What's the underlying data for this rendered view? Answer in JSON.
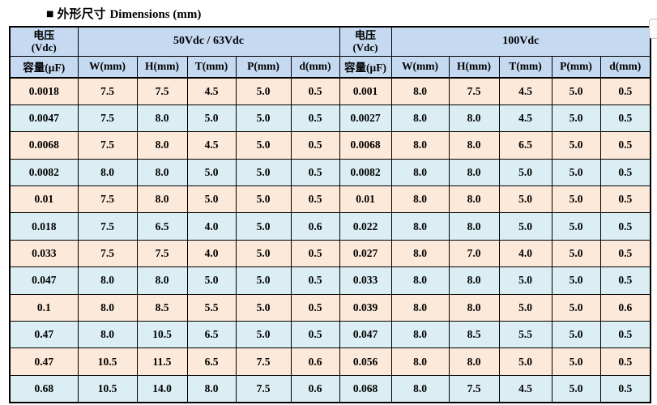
{
  "title": {
    "bullet": "■",
    "cn": "外形尺寸",
    "en": "Dimensions (mm)"
  },
  "table": {
    "left": {
      "voltage_label_line1": "电压",
      "voltage_label_line2": "(Vdc)",
      "voltage_value": "50Vdc / 63Vdc",
      "capacity_header": "容量(μF)",
      "columns": [
        "W(mm)",
        "H(mm)",
        "T(mm)",
        "P(mm)",
        "d(mm)"
      ],
      "rows": [
        [
          "0.0018",
          "7.5",
          "7.5",
          "4.5",
          "5.0",
          "0.5"
        ],
        [
          "0.0047",
          "7.5",
          "8.0",
          "5.0",
          "5.0",
          "0.5"
        ],
        [
          "0.0068",
          "7.5",
          "8.0",
          "4.5",
          "5.0",
          "0.5"
        ],
        [
          "0.0082",
          "8.0",
          "8.0",
          "5.0",
          "5.0",
          "0.5"
        ],
        [
          "0.01",
          "7.5",
          "8.0",
          "5.0",
          "5.0",
          "0.5"
        ],
        [
          "0.018",
          "7.5",
          "6.5",
          "4.0",
          "5.0",
          "0.6"
        ],
        [
          "0.033",
          "7.5",
          "7.5",
          "4.0",
          "5.0",
          "0.5"
        ],
        [
          "0.047",
          "8.0",
          "8.0",
          "5.0",
          "5.0",
          "0.5"
        ],
        [
          "0.1",
          "8.0",
          "8.5",
          "5.5",
          "5.0",
          "0.5"
        ],
        [
          "0.47",
          "8.0",
          "10.5",
          "6.5",
          "5.0",
          "0.5"
        ],
        [
          "0.47",
          "10.5",
          "11.5",
          "6.5",
          "7.5",
          "0.6"
        ],
        [
          "0.68",
          "10.5",
          "14.0",
          "8.0",
          "7.5",
          "0.6"
        ]
      ]
    },
    "right": {
      "voltage_label_line1": "电压",
      "voltage_label_line2": "(Vdc)",
      "voltage_value": "100Vdc",
      "capacity_header": "容量(μF)",
      "columns": [
        "W(mm)",
        "H(mm)",
        "T(mm)",
        "P(mm)",
        "d(mm)"
      ],
      "rows": [
        [
          "0.001",
          "8.0",
          "7.5",
          "4.5",
          "5.0",
          "0.5"
        ],
        [
          "0.0027",
          "8.0",
          "8.0",
          "4.5",
          "5.0",
          "0.5"
        ],
        [
          "0.0068",
          "8.0",
          "8.0",
          "6.5",
          "5.0",
          "0.5"
        ],
        [
          "0.0082",
          "8.0",
          "8.0",
          "5.0",
          "5.0",
          "0.5"
        ],
        [
          "0.01",
          "8.0",
          "8.0",
          "5.0",
          "5.0",
          "0.5"
        ],
        [
          "0.022",
          "8.0",
          "8.0",
          "5.0",
          "5.0",
          "0.5"
        ],
        [
          "0.027",
          "8.0",
          "7.0",
          "4.0",
          "5.0",
          "0.5"
        ],
        [
          "0.033",
          "8.0",
          "8.0",
          "5.0",
          "5.0",
          "0.5"
        ],
        [
          "0.039",
          "8.0",
          "8.0",
          "5.0",
          "5.0",
          "0.6"
        ],
        [
          "0.047",
          "8.0",
          "8.5",
          "5.5",
          "5.0",
          "0.5"
        ],
        [
          "0.056",
          "8.0",
          "8.0",
          "5.0",
          "5.0",
          "0.5"
        ],
        [
          "0.068",
          "8.0",
          "7.5",
          "4.5",
          "5.0",
          "0.5"
        ]
      ]
    },
    "colors": {
      "header_bg": "#c5d9f1",
      "row_odd_bg": "#fde9d9",
      "row_even_bg": "#daeef3",
      "border": "#000000"
    }
  }
}
